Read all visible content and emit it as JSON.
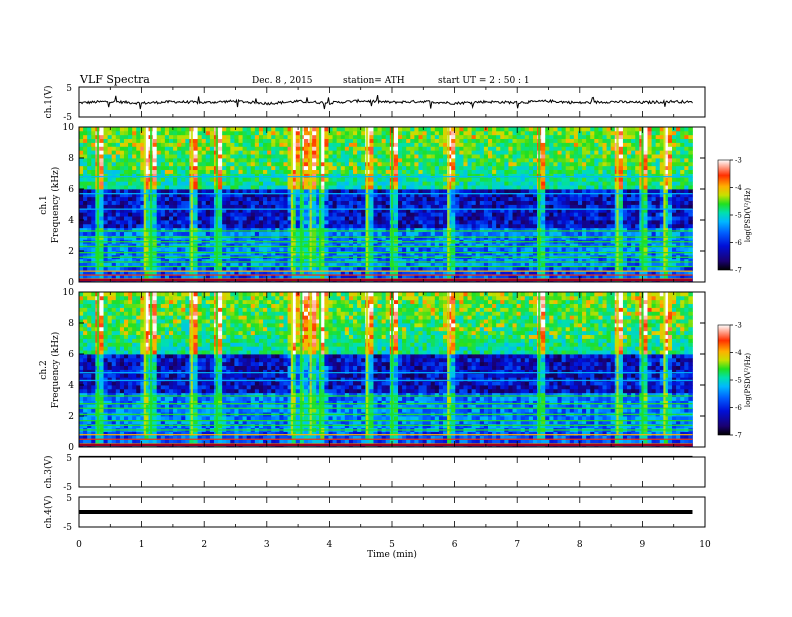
{
  "header": {
    "title": "VLF  Spectra",
    "date": "Dec. 8  , 2015",
    "station": "station= ATH",
    "start": "start  UT  =   2  : 50 : 1"
  },
  "colors": {
    "colormap": [
      "#000000",
      "#1a0070",
      "#0010d8",
      "#0060ff",
      "#00b8ff",
      "#00e0b0",
      "#20e020",
      "#c8e000",
      "#ffb000",
      "#ff3000",
      "#ffffff"
    ],
    "trace": "#000000",
    "axes": "#000000"
  },
  "chart_data": [
    {
      "type": "line",
      "name": "ch1_waveform",
      "ylabel": "ch.1(V)",
      "ylim": [
        -5,
        5
      ],
      "yticks": [
        "5",
        "-5"
      ],
      "x": [
        0,
        0.5,
        1.0,
        1.5,
        2.0,
        2.5,
        3.0,
        3.5,
        4.0,
        4.5,
        5.0,
        5.5,
        6.0,
        6.5,
        7.0,
        7.5,
        8.0,
        8.5,
        9.0,
        9.5,
        9.8
      ],
      "y": [
        -0.3,
        0.2,
        -0.4,
        0.1,
        -0.2,
        0.3,
        -0.5,
        0.2,
        -0.3,
        0.4,
        -0.1,
        0.2,
        -0.4,
        0.1,
        -0.2,
        0.3,
        -0.3,
        0.1,
        -0.2,
        0.2,
        -0.1
      ]
    },
    {
      "type": "heatmap",
      "name": "ch1_spectrogram",
      "ylabel": "ch.1\nFrequency  (kHz)",
      "ylim": [
        0,
        10
      ],
      "yticks": [
        "0",
        "2",
        "4",
        "6",
        "8",
        "10"
      ],
      "colorbar": {
        "label": "log(PSD(V²/Hz)",
        "range": [
          -7,
          -3
        ],
        "ticks": [
          "-3",
          "-4",
          "-5",
          "-6",
          "-7"
        ]
      },
      "bands_khz": [
        0.2,
        0.45,
        0.7,
        1.0,
        1.3,
        1.6,
        1.9,
        2.3,
        2.6,
        2.9,
        3.3,
        4.7,
        5.7,
        6.8
      ],
      "strong_bursts_min": [
        0.3,
        1.05,
        1.15,
        1.8,
        2.2,
        3.4,
        3.55,
        3.7,
        3.85,
        4.6,
        5.0,
        5.9,
        7.35,
        8.6,
        9.0,
        9.35
      ]
    },
    {
      "type": "heatmap",
      "name": "ch2_spectrogram",
      "ylabel": "ch.2\nFrequency  (kHz)",
      "ylim": [
        0,
        10
      ],
      "yticks": [
        "0",
        "2",
        "4",
        "6",
        "8",
        "10"
      ],
      "colorbar": {
        "label": "log(PSD(V²/Hz)",
        "range": [
          -7,
          -3
        ],
        "ticks": [
          "-3",
          "-4",
          "-5",
          "-6",
          "-7"
        ]
      },
      "bands_khz": [
        0.2,
        0.5,
        0.8,
        1.1,
        1.4,
        1.7,
        2.1,
        2.5,
        2.8,
        3.3,
        4.3,
        4.8
      ],
      "strong_bursts_min": [
        0.3,
        1.05,
        1.15,
        1.8,
        2.2,
        3.4,
        3.55,
        3.7,
        3.85,
        4.6,
        5.0,
        5.9,
        7.35,
        8.6,
        9.0,
        9.35
      ]
    },
    {
      "type": "line",
      "name": "ch3_waveform",
      "ylabel": "ch.3(V)",
      "ylim": [
        -5,
        5
      ],
      "yticks": [
        "5",
        "-5"
      ],
      "x": [
        0,
        9.8
      ],
      "y": [
        5,
        5
      ]
    },
    {
      "type": "line",
      "name": "ch4_waveform",
      "ylabel": "ch.4(V)",
      "ylim": [
        -5,
        5
      ],
      "yticks": [
        "5",
        "-5"
      ],
      "x": [
        0,
        9.8
      ],
      "y": [
        0,
        0
      ]
    }
  ],
  "x_axis": {
    "label": "Time  (min)",
    "ticks": [
      "0",
      "1",
      "2",
      "3",
      "4",
      "5",
      "6",
      "7",
      "8",
      "9",
      "10"
    ],
    "range": [
      0,
      10
    ],
    "data_end": 9.8
  }
}
